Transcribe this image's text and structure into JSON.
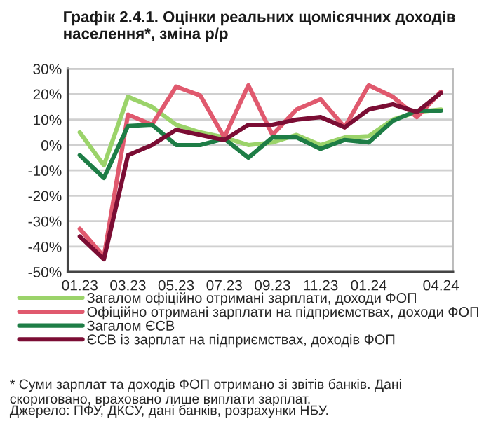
{
  "chart_data": {
    "type": "line",
    "title": "Графік 2.4.1. Оцінки реальних щомісячних доходів населення*, зміна р/р",
    "categories": [
      "01.23",
      null,
      "03.23",
      null,
      "05.23",
      null,
      "07.23",
      null,
      "09.23",
      null,
      "11.23",
      null,
      "01.24",
      null,
      null,
      "04.24"
    ],
    "series": [
      {
        "name": "Загалом офіційно отримані зарплати, доходи ФОП",
        "color": "#9bd36a",
        "values": [
          5,
          -8,
          19,
          15,
          8,
          5,
          3,
          0,
          1,
          4,
          0,
          3,
          3.5,
          10,
          13,
          14
        ]
      },
      {
        "name": "Офіційно отримані зарплати на підприємствах, доходи ФОП",
        "color": "#e0596e",
        "values": [
          -33,
          -44,
          12,
          8,
          23,
          19.5,
          3,
          23.5,
          4,
          14,
          18,
          7,
          23.5,
          19,
          11,
          21
        ]
      },
      {
        "name": "Загалом ЄСВ",
        "color": "#1e7d46",
        "values": [
          -4,
          -13,
          7.5,
          8,
          0,
          0,
          2.5,
          -5,
          3,
          3,
          -1.5,
          2,
          1,
          9.5,
          13.5,
          13.5
        ]
      },
      {
        "name": "ЄСВ із зарплат на підприємствах, доходів ФОП",
        "color": "#7b0d34",
        "values": [
          -36,
          -45,
          -4,
          0,
          6,
          4,
          2,
          8,
          8,
          10,
          11,
          7,
          14,
          16,
          13,
          20.5
        ]
      }
    ],
    "ylim": [
      -50,
      30
    ],
    "yticks": [
      {
        "value": -50,
        "label": "-50%"
      },
      {
        "value": -40,
        "label": "-40%"
      },
      {
        "value": -30,
        "label": "-30%"
      },
      {
        "value": -20,
        "label": "-20%"
      },
      {
        "value": -10,
        "label": "-10%"
      },
      {
        "value": 0,
        "label": "0%"
      },
      {
        "value": 10,
        "label": "10%"
      },
      {
        "value": 20,
        "label": "20%"
      },
      {
        "value": 30,
        "label": "30%"
      }
    ],
    "grid": "y",
    "legend": "bottom",
    "line_style": "solid",
    "marker": "none",
    "annotations": [
      "* Суми зарплат та доходів ФОП отримано зі звітів банків. Дані скориговано, враховано лише виплати зарплат.",
      "Джерело: ПФУ, ДКСУ, дані банків, розрахунки НБУ."
    ]
  }
}
